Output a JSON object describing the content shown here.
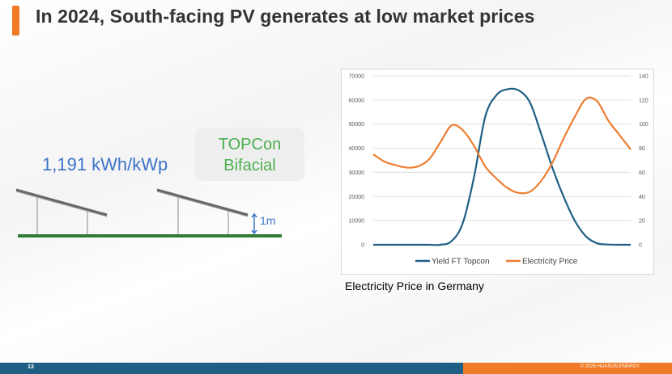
{
  "slide": {
    "title": "In 2024, South-facing PV generates at low market prices",
    "yield_text": "1,191 kWh/kWp",
    "tech_line_1": "TOPCon",
    "tech_line_2": "Bifacial",
    "height_label": "1m",
    "chart_caption": "Electricity Price in Germany",
    "page_number": "13",
    "copyright": "© 2025 HUASUN ENERGY"
  },
  "colors": {
    "accent": "#f07a26",
    "footer_blue": "#1f5f85",
    "yield_series": "#1f5f85",
    "price_series": "#ed7d31",
    "tech_text": "#4caf50",
    "yield_text": "#3b74c9"
  },
  "chart_data": {
    "type": "line",
    "title": "",
    "x": [
      0,
      1,
      2,
      3,
      4,
      5,
      6,
      7,
      8,
      9,
      10,
      11,
      12,
      13,
      14,
      15,
      16,
      17,
      18,
      19,
      20,
      21,
      22,
      23
    ],
    "y_left": {
      "ticks": [
        0,
        10000,
        20000,
        30000,
        40000,
        50000,
        60000,
        70000
      ],
      "lim": [
        0,
        70000
      ]
    },
    "y_right": {
      "ticks": [
        0,
        20,
        40,
        60,
        80,
        100,
        120,
        140
      ],
      "lim": [
        0,
        140
      ]
    },
    "grid": true,
    "legend_position": "bottom",
    "series": [
      {
        "name": "Yield FT Topcon",
        "axis": "left",
        "color": "#1f5f85",
        "values": [
          0,
          0,
          0,
          0,
          0,
          0,
          0,
          1500,
          9000,
          28000,
          53000,
          62000,
          64500,
          64000,
          59000,
          46000,
          32000,
          20000,
          10000,
          3500,
          600,
          100,
          0,
          0
        ]
      },
      {
        "name": "Electricity Price",
        "axis": "right",
        "color": "#ed7d31",
        "values": [
          75,
          69,
          66,
          64,
          65,
          71,
          85,
          99,
          95,
          82,
          65,
          55,
          47,
          43,
          44,
          53,
          68,
          88,
          106,
          121,
          119,
          103,
          91,
          79
        ]
      }
    ]
  }
}
